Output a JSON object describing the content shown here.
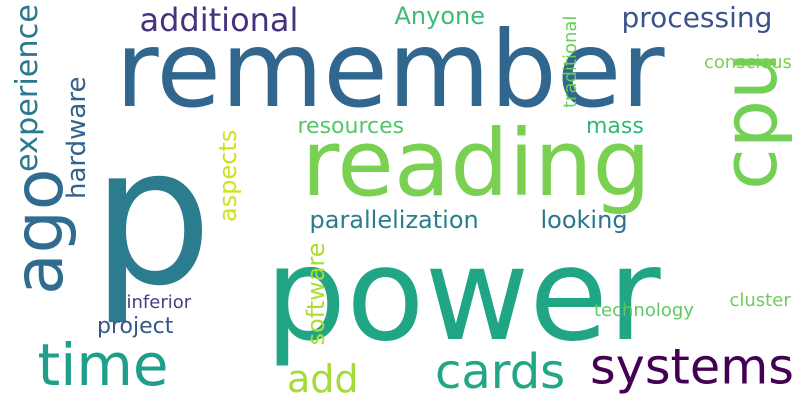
{
  "words": [
    {
      "text": "p",
      "color": "#2a7c8e",
      "vertical": false
    },
    {
      "text": "remember",
      "color": "#31668e",
      "vertical": false
    },
    {
      "text": "power",
      "color": "#21a685",
      "vertical": false
    },
    {
      "text": "reading",
      "color": "#7ad151",
      "vertical": false
    },
    {
      "text": "cpu",
      "color": "#73d056",
      "vertical": true
    },
    {
      "text": "time",
      "color": "#1f9e89",
      "vertical": false
    },
    {
      "text": "ago",
      "color": "#2f6c8e",
      "vertical": true
    },
    {
      "text": "cards",
      "color": "#22a785",
      "vertical": false
    },
    {
      "text": "systems",
      "color": "#440154",
      "vertical": false
    },
    {
      "text": "add",
      "color": "#a5db36",
      "vertical": false
    },
    {
      "text": "additional",
      "color": "#46327e",
      "vertical": false
    },
    {
      "text": "processing",
      "color": "#3b528b",
      "vertical": false
    },
    {
      "text": "Anyone",
      "color": "#3dbc74",
      "vertical": false
    },
    {
      "text": "parallelization",
      "color": "#277f8e",
      "vertical": false
    },
    {
      "text": "looking",
      "color": "#2a768e",
      "vertical": false
    },
    {
      "text": "resources",
      "color": "#54c568",
      "vertical": false
    },
    {
      "text": "mass",
      "color": "#32b67a",
      "vertical": false
    },
    {
      "text": "project",
      "color": "#39568c",
      "vertical": false
    },
    {
      "text": "experience",
      "color": "#2a788e",
      "vertical": true
    },
    {
      "text": "hardware",
      "color": "#33638d",
      "vertical": true
    },
    {
      "text": "aspects",
      "color": "#d0e11c",
      "vertical": true
    },
    {
      "text": "software",
      "color": "#addc30",
      "vertical": true
    },
    {
      "text": "traditional",
      "color": "#6ccd5a",
      "vertical": true
    },
    {
      "text": "conscious",
      "color": "#7ad151",
      "vertical": false
    },
    {
      "text": "inferior",
      "color": "#424086",
      "vertical": false
    },
    {
      "text": "technology",
      "color": "#5ec962",
      "vertical": false
    },
    {
      "text": "cluster",
      "color": "#6ccd5a",
      "vertical": false
    }
  ]
}
